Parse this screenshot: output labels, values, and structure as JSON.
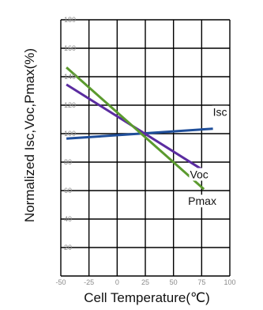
{
  "chart_data": {
    "type": "line",
    "xlabel": "Cell Temperature(℃)",
    "ylabel": "Normalized Isc,Voc,Pmax(%)",
    "xlim": [
      -50,
      100
    ],
    "ylim": [
      0,
      180
    ],
    "x_ticks": [
      "-50",
      "-25",
      "0",
      "25",
      "50",
      "75",
      "100"
    ],
    "y_ticks": [
      "20",
      "40",
      "60",
      "80",
      "100",
      "120",
      "140",
      "160",
      "180"
    ],
    "grid": true,
    "series": [
      {
        "name": "Isc",
        "color": "#1f4e9a",
        "x": [
          -45,
          85
        ],
        "y": [
          96.5,
          103.5
        ]
      },
      {
        "name": "Voc",
        "color": "#5b2ca0",
        "x": [
          -45,
          80
        ],
        "y": [
          134.5,
          72.5
        ]
      },
      {
        "name": "Pmax",
        "color": "#5b9a2e",
        "x": [
          -45,
          77
        ],
        "y": [
          146.5,
          61
        ]
      }
    ]
  }
}
